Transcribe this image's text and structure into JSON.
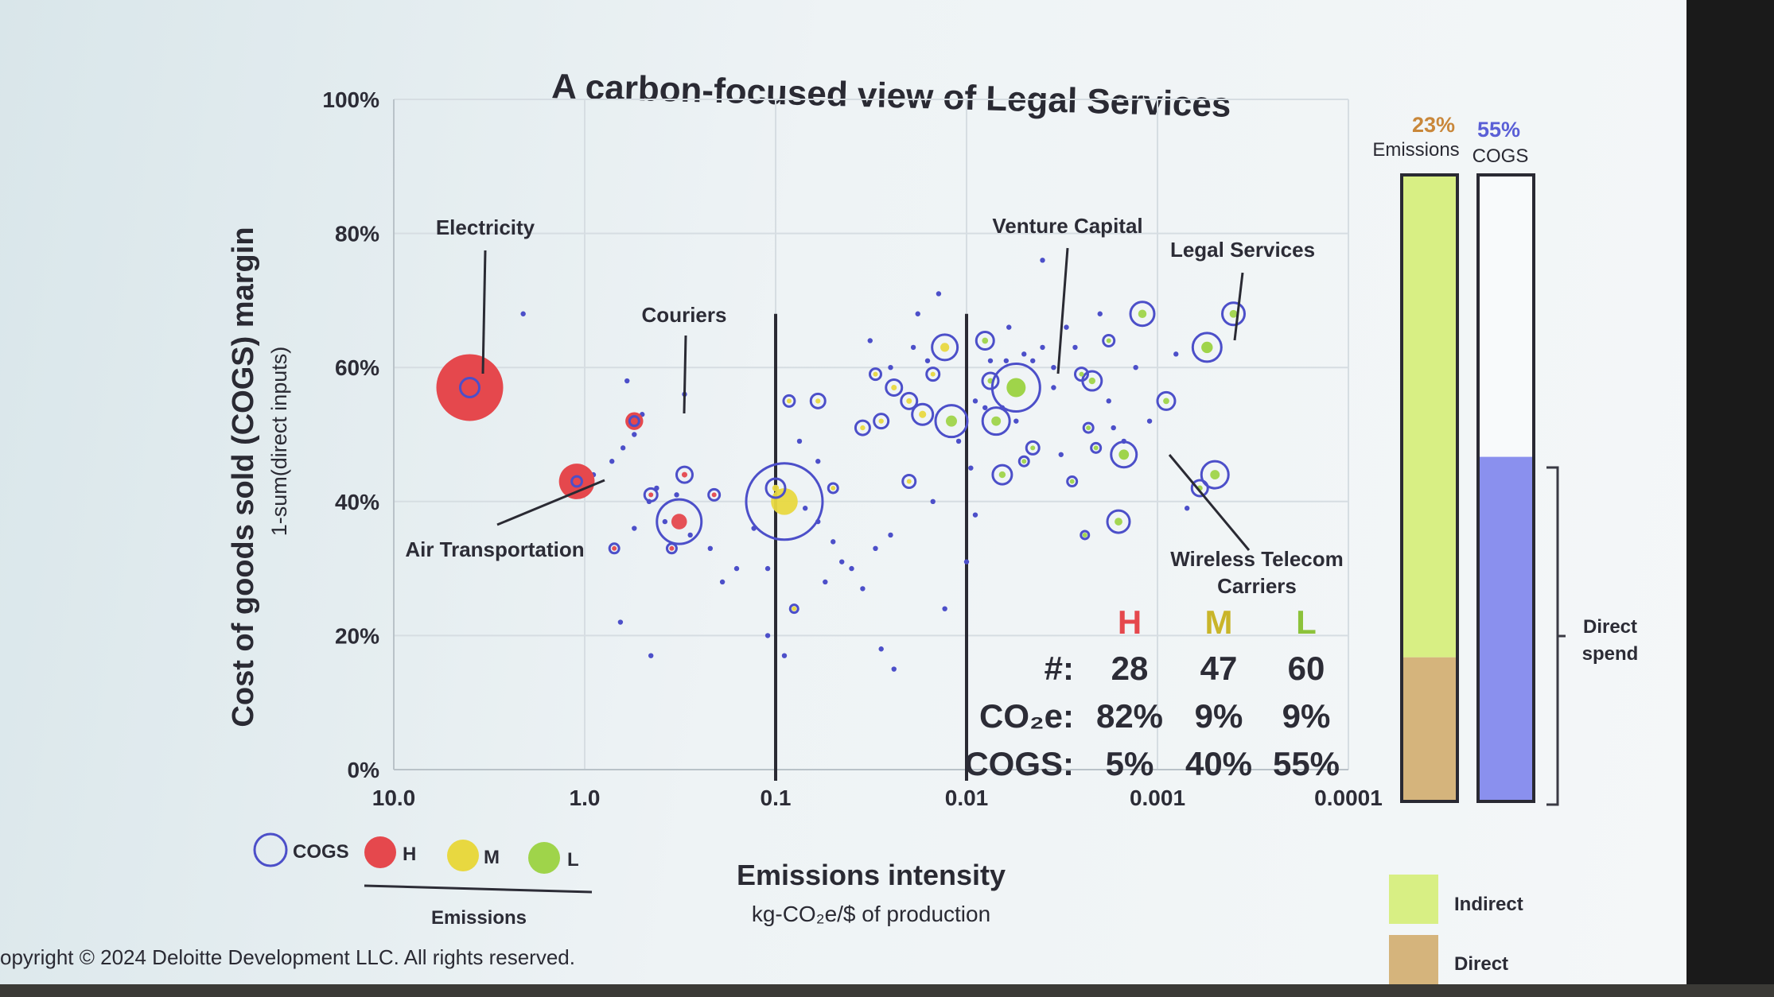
{
  "colors": {
    "high": "#e5484d",
    "medium": "#e8d840",
    "low": "#9fd44a",
    "cogs_ring": "#4c4fc9",
    "indirect": "#d8ef84",
    "direct": "#d5b47c",
    "cogs_direct": "#8a90ee"
  },
  "chart_data": {
    "type": "scatter",
    "title": "A carbon-focused view of Legal Services",
    "ylabel": "Cost of goods sold (COGS) margin",
    "ylabel_sub": "1-sum(direct inputs)",
    "xlabel": "Emissions intensity",
    "xlabel_sub": "kg-CO₂e/$ of production",
    "x_scale": "log-reversed",
    "xlim": [
      10,
      0.0001
    ],
    "ylim": [
      0,
      100
    ],
    "x_ticks": [
      "10.0",
      "1.0",
      "0.1",
      "0.01",
      "0.001",
      "0.0001"
    ],
    "y_ticks": [
      "0%",
      "20%",
      "40%",
      "60%",
      "80%",
      "100%"
    ],
    "thresholds_x": [
      0.1,
      0.01
    ],
    "labeled_points": [
      {
        "label": "Electricity",
        "x": 4.0,
        "y": 57,
        "level": "H",
        "size": 60
      },
      {
        "label": "Couriers",
        "x": 0.55,
        "y": 52,
        "level": "H",
        "size": 16
      },
      {
        "label": "Air Transportation",
        "x": 1.1,
        "y": 43,
        "level": "H",
        "size": 32
      },
      {
        "label": "Venture Capital",
        "x": 0.0055,
        "y": 57,
        "level": "L",
        "size": 30
      },
      {
        "label": "Legal Services",
        "x": 0.00055,
        "y": 63,
        "level": "L",
        "size": 18
      },
      {
        "label": "Wireless Telecom Carriers",
        "x": 0.0015,
        "y": 47,
        "level": "L",
        "size": 16
      }
    ],
    "points": [
      {
        "x": 0.32,
        "y": 37,
        "r": 28,
        "level": "H"
      },
      {
        "x": 0.3,
        "y": 44,
        "r": 10,
        "level": "H"
      },
      {
        "x": 0.09,
        "y": 40,
        "r": 48,
        "level": "M"
      },
      {
        "x": 0.1,
        "y": 42,
        "r": 12,
        "level": "M"
      },
      {
        "x": 0.085,
        "y": 55,
        "r": 7,
        "level": "M"
      },
      {
        "x": 0.06,
        "y": 55,
        "r": 9,
        "level": "M"
      },
      {
        "x": 0.035,
        "y": 51,
        "r": 9,
        "level": "M"
      },
      {
        "x": 0.024,
        "y": 57,
        "r": 10,
        "level": "M"
      },
      {
        "x": 0.02,
        "y": 55,
        "r": 10,
        "level": "M"
      },
      {
        "x": 0.028,
        "y": 52,
        "r": 9,
        "level": "M"
      },
      {
        "x": 0.017,
        "y": 53,
        "r": 13,
        "level": "M"
      },
      {
        "x": 0.013,
        "y": 63,
        "r": 16,
        "level": "M"
      },
      {
        "x": 0.012,
        "y": 52,
        "r": 20,
        "level": "L"
      },
      {
        "x": 0.008,
        "y": 64,
        "r": 11,
        "level": "L"
      },
      {
        "x": 0.007,
        "y": 52,
        "r": 17,
        "level": "L"
      },
      {
        "x": 0.0075,
        "y": 58,
        "r": 10,
        "level": "L"
      },
      {
        "x": 0.0065,
        "y": 44,
        "r": 12,
        "level": "L"
      },
      {
        "x": 0.0045,
        "y": 48,
        "r": 8,
        "level": "L"
      },
      {
        "x": 0.0022,
        "y": 58,
        "r": 12,
        "level": "L"
      },
      {
        "x": 0.0021,
        "y": 48,
        "r": 6,
        "level": "L"
      },
      {
        "x": 0.0025,
        "y": 59,
        "r": 8,
        "level": "L"
      },
      {
        "x": 0.0012,
        "y": 68,
        "r": 15,
        "level": "L"
      },
      {
        "x": 0.0018,
        "y": 64,
        "r": 7,
        "level": "L"
      },
      {
        "x": 0.0009,
        "y": 55,
        "r": 11,
        "level": "L"
      },
      {
        "x": 0.0016,
        "y": 37,
        "r": 14,
        "level": "L"
      },
      {
        "x": 0.0005,
        "y": 44,
        "r": 17,
        "level": "L"
      },
      {
        "x": 0.0006,
        "y": 42,
        "r": 10,
        "level": "L"
      },
      {
        "x": 0.0004,
        "y": 68,
        "r": 14,
        "level": "L"
      },
      {
        "x": 0.05,
        "y": 42,
        "r": 6,
        "level": "M"
      },
      {
        "x": 0.02,
        "y": 43,
        "r": 8,
        "level": "M"
      },
      {
        "x": 0.03,
        "y": 59,
        "r": 7,
        "level": "M"
      },
      {
        "x": 0.015,
        "y": 59,
        "r": 8,
        "level": "M"
      },
      {
        "x": 0.005,
        "y": 46,
        "r": 6,
        "level": "L"
      },
      {
        "x": 0.0028,
        "y": 43,
        "r": 6,
        "level": "L"
      },
      {
        "x": 0.0023,
        "y": 51,
        "r": 6,
        "level": "L"
      },
      {
        "x": 0.0024,
        "y": 35,
        "r": 5,
        "level": "L"
      },
      {
        "x": 0.45,
        "y": 41,
        "r": 8,
        "level": "H"
      },
      {
        "x": 0.21,
        "y": 41,
        "r": 7,
        "level": "H"
      },
      {
        "x": 0.08,
        "y": 24,
        "r": 5,
        "level": "M"
      },
      {
        "x": 0.7,
        "y": 33,
        "r": 6,
        "level": "H"
      },
      {
        "x": 0.35,
        "y": 33,
        "r": 6,
        "level": "H"
      }
    ],
    "dots": [
      [
        2.1,
        68
      ],
      [
        0.6,
        58
      ],
      [
        0.5,
        53
      ],
      [
        0.55,
        50
      ],
      [
        0.63,
        48
      ],
      [
        0.72,
        46
      ],
      [
        0.9,
        44
      ],
      [
        0.42,
        42
      ],
      [
        0.38,
        37
      ],
      [
        0.55,
        36
      ],
      [
        0.46,
        40
      ],
      [
        0.33,
        41
      ],
      [
        0.28,
        35
      ],
      [
        0.22,
        33
      ],
      [
        0.16,
        30
      ],
      [
        0.19,
        28
      ],
      [
        0.11,
        30
      ],
      [
        0.13,
        36
      ],
      [
        0.07,
        39
      ],
      [
        0.06,
        37
      ],
      [
        0.05,
        34
      ],
      [
        0.045,
        31
      ],
      [
        0.04,
        30
      ],
      [
        0.055,
        28
      ],
      [
        0.035,
        27
      ],
      [
        0.03,
        33
      ],
      [
        0.025,
        35
      ],
      [
        0.015,
        40
      ],
      [
        0.013,
        24
      ],
      [
        0.028,
        18
      ],
      [
        0.06,
        46
      ],
      [
        0.075,
        49
      ],
      [
        0.11,
        20
      ],
      [
        0.09,
        17
      ],
      [
        0.45,
        17
      ],
      [
        0.65,
        22
      ],
      [
        0.01,
        31
      ],
      [
        0.009,
        38
      ],
      [
        0.011,
        49
      ],
      [
        0.009,
        55
      ],
      [
        0.006,
        66
      ],
      [
        0.005,
        62
      ],
      [
        0.0045,
        61
      ],
      [
        0.004,
        63
      ],
      [
        0.0035,
        57
      ],
      [
        0.0035,
        60
      ],
      [
        0.003,
        66
      ],
      [
        0.0027,
        63
      ],
      [
        0.002,
        68
      ],
      [
        0.0013,
        60
      ],
      [
        0.0018,
        55
      ],
      [
        0.0011,
        52
      ],
      [
        0.0017,
        51
      ],
      [
        0.0015,
        49
      ],
      [
        0.0007,
        39
      ],
      [
        0.004,
        76
      ],
      [
        0.014,
        71
      ],
      [
        0.008,
        54
      ],
      [
        0.0075,
        61
      ],
      [
        0.0095,
        45
      ],
      [
        0.032,
        64
      ],
      [
        0.025,
        60
      ],
      [
        0.018,
        68
      ],
      [
        0.016,
        61
      ],
      [
        0.019,
        63
      ],
      [
        0.3,
        56
      ],
      [
        0.024,
        15
      ],
      [
        0.0065,
        54
      ],
      [
        0.0055,
        52
      ],
      [
        0.0062,
        61
      ],
      [
        0.0032,
        47
      ],
      [
        0.0008,
        62
      ]
    ],
    "table": {
      "headers": [
        "H",
        "M",
        "L"
      ],
      "rows": [
        {
          "label": "#:",
          "values": [
            "28",
            "47",
            "60"
          ]
        },
        {
          "label": "CO₂e:",
          "values": [
            "82%",
            "9%",
            "9%"
          ]
        },
        {
          "label": "COGS:",
          "values": [
            "5%",
            "40%",
            "55%"
          ]
        }
      ]
    },
    "stacked_bars": {
      "emissions": {
        "label_pct": "23%",
        "label": "Emissions",
        "indirect": 77,
        "direct": 23
      },
      "cogs": {
        "label_pct": "55%",
        "label": "COGS",
        "direct_spend": 55
      },
      "bracket_label": [
        "Direct",
        "spend"
      ]
    },
    "legend": {
      "items": [
        "COGS",
        "H",
        "M",
        "L"
      ],
      "group_label": "Emissions",
      "bar_legend": [
        "Indirect",
        "Direct"
      ]
    }
  },
  "footer": {
    "copyright": "opyright © 2024 Deloitte Development LLC. All rights reserved."
  }
}
